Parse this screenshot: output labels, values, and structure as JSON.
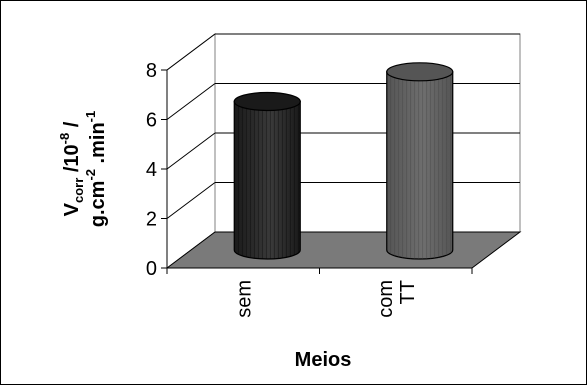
{
  "chart_data": {
    "type": "bar",
    "style": "3d-cylinder",
    "categories": [
      "sem",
      "com TT"
    ],
    "category_lines": [
      [
        "sem"
      ],
      [
        "com",
        "TT"
      ]
    ],
    "values": [
      6.0,
      7.2
    ],
    "series_colors": [
      "#1a1a1a",
      "#555555"
    ],
    "floor_color": "#7a7a7a",
    "xlabel": "Meios",
    "ylabel_parts": {
      "line1": {
        "base": "V",
        "sub": "corr",
        "mid": " /10",
        "sup": "-8",
        "end": " /"
      },
      "line2": {
        "base": "g.cm",
        "sup": "-2",
        "mid": " .min",
        "sup2": "-1"
      }
    },
    "ylim": [
      0,
      8
    ],
    "yticks": [
      "0",
      "2",
      "4",
      "6",
      "8"
    ],
    "grid": true,
    "legend": "none"
  }
}
